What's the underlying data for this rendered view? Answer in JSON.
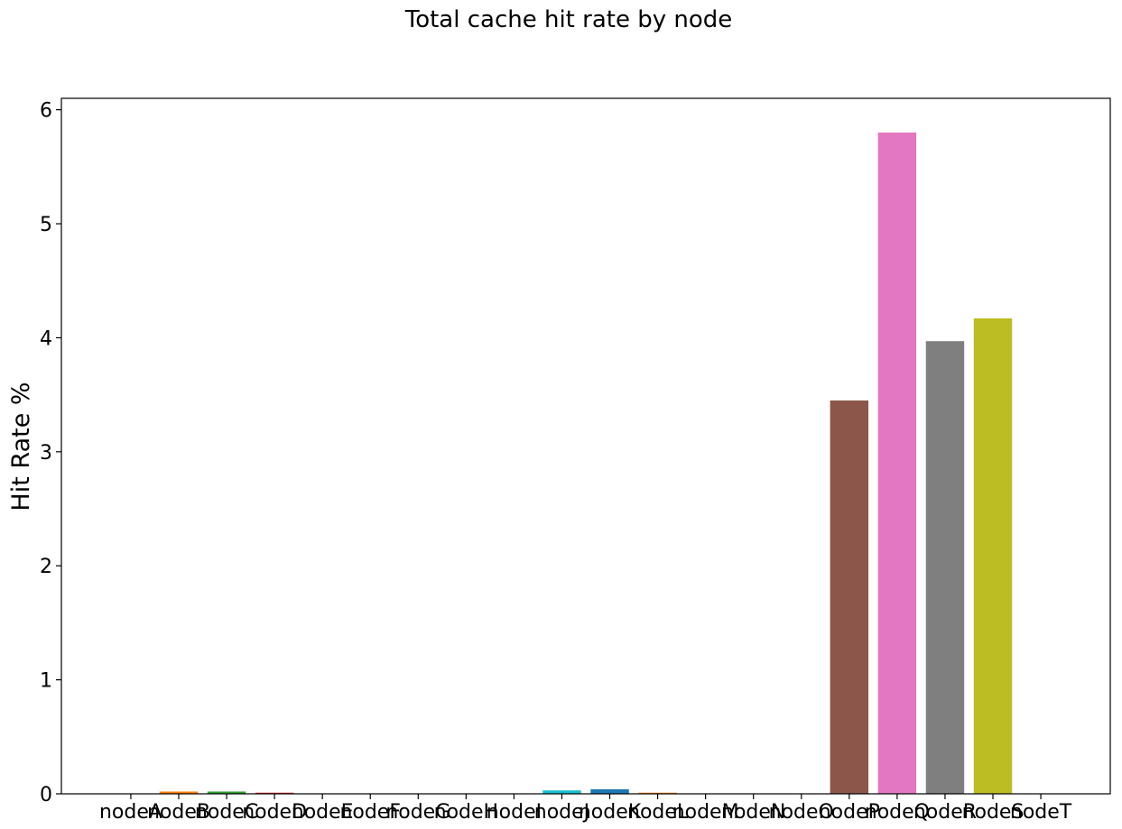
{
  "chart_data": {
    "type": "bar",
    "title": "Total cache hit rate by node",
    "xlabel": "",
    "ylabel": "Hit Rate %",
    "ylim": [
      0,
      6.1
    ],
    "yticks": [
      0,
      1,
      2,
      3,
      4,
      5,
      6
    ],
    "grid": false,
    "categories": [
      "nodeA",
      "nodeB",
      "nodeC",
      "nodeD",
      "nodeE",
      "nodeF",
      "nodeG",
      "nodeH",
      "nodeI",
      "nodeJ",
      "nodeK",
      "nodeL",
      "nodeM",
      "nodeN",
      "nodeO",
      "nodeP",
      "nodeQ",
      "nodeR",
      "nodeS",
      "nodeT"
    ],
    "values": [
      0.0,
      0.02,
      0.02,
      0.01,
      0.0,
      0.0,
      0.0,
      0.0,
      0.0,
      0.03,
      0.04,
      0.01,
      0.0,
      0.0,
      0.0,
      3.45,
      5.8,
      3.97,
      4.17,
      0.0
    ],
    "colors": [
      "#1f77b4",
      "#ff7f0e",
      "#2ca02c",
      "#d62728",
      "#9467bd",
      "#8c564b",
      "#e377c2",
      "#7f7f7f",
      "#bcbd22",
      "#17becf",
      "#1f77b4",
      "#ff7f0e",
      "#2ca02c",
      "#d62728",
      "#9467bd",
      "#8c564b",
      "#e377c2",
      "#7f7f7f",
      "#bcbd22",
      "#17becf"
    ]
  }
}
